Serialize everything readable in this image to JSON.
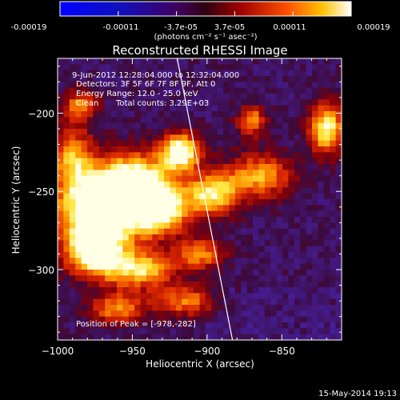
{
  "colorbar": {
    "ticks": [
      "-0.00019",
      "-0.00011",
      "-3.7e-05",
      "3.7e-05",
      "0.00011",
      "0.00019"
    ],
    "unit_label": "(photons cm⁻² s⁻¹ asec⁻²)"
  },
  "title": "Reconstructed RHESSI Image",
  "annotations": {
    "time_range": "9-Jun-2012 12:28:04.000 to 12:32:04.000",
    "detectors": "Detectors: 3F 5F 6F 7F 8F 9F, Att 0",
    "energy": "Energy Range: 12.0 - 25.0 keV",
    "clean": "Clean",
    "counts": "Total counts: 3.29E+03",
    "peak": "Position of Peak = [-978,-282]"
  },
  "footer": {
    "timestamp": "15-May-2014 19:13"
  },
  "chart_data": {
    "type": "heatmap",
    "title": "Reconstructed RHESSI Image",
    "xlabel": "Heliocentric X (arcsec)",
    "ylabel": "Heliocentric Y (arcsec)",
    "xlim": [
      -1000,
      -810
    ],
    "ylim": [
      -345,
      -165
    ],
    "x_ticks": [
      -1000,
      -950,
      -900,
      -850
    ],
    "y_ticks": [
      -200,
      -250,
      -300
    ],
    "x_tick_labels": [
      "−1000",
      "−950",
      "−900",
      "−850"
    ],
    "y_tick_labels": [
      "−200",
      "−250",
      "−300"
    ],
    "colorbar_range": [
      -0.00019,
      0.00019
    ],
    "peak_position": [
      -978,
      -282
    ],
    "limb_line": [
      [
        -920,
        -165
      ],
      [
        -883,
        -345
      ]
    ],
    "source_blobs": [
      {
        "x": -972,
        "y": -262,
        "rx": 28,
        "ry": 22,
        "level": 0.95
      },
      {
        "x": -950,
        "y": -246,
        "rx": 26,
        "ry": 20,
        "level": 0.9
      },
      {
        "x": -932,
        "y": -262,
        "rx": 20,
        "ry": 16,
        "level": 0.8
      },
      {
        "x": -918,
        "y": -225,
        "rx": 14,
        "ry": 12,
        "level": 0.88
      },
      {
        "x": -896,
        "y": -252,
        "rx": 18,
        "ry": 14,
        "level": 0.7
      },
      {
        "x": -975,
        "y": -288,
        "rx": 20,
        "ry": 16,
        "level": 0.9
      },
      {
        "x": -945,
        "y": -300,
        "rx": 24,
        "ry": 12,
        "level": 0.65
      },
      {
        "x": -865,
        "y": -240,
        "rx": 22,
        "ry": 14,
        "level": 0.55
      },
      {
        "x": -870,
        "y": -205,
        "rx": 10,
        "ry": 10,
        "level": 0.5
      },
      {
        "x": -820,
        "y": -210,
        "rx": 12,
        "ry": 16,
        "level": 0.75
      },
      {
        "x": -990,
        "y": -230,
        "rx": 14,
        "ry": 22,
        "level": 0.55
      },
      {
        "x": -905,
        "y": -290,
        "rx": 16,
        "ry": 10,
        "level": 0.5
      },
      {
        "x": -915,
        "y": -320,
        "rx": 22,
        "ry": 10,
        "level": 0.45
      },
      {
        "x": -960,
        "y": -325,
        "rx": 18,
        "ry": 10,
        "level": 0.5
      },
      {
        "x": -985,
        "y": -195,
        "rx": 12,
        "ry": 10,
        "level": 0.45
      }
    ]
  }
}
